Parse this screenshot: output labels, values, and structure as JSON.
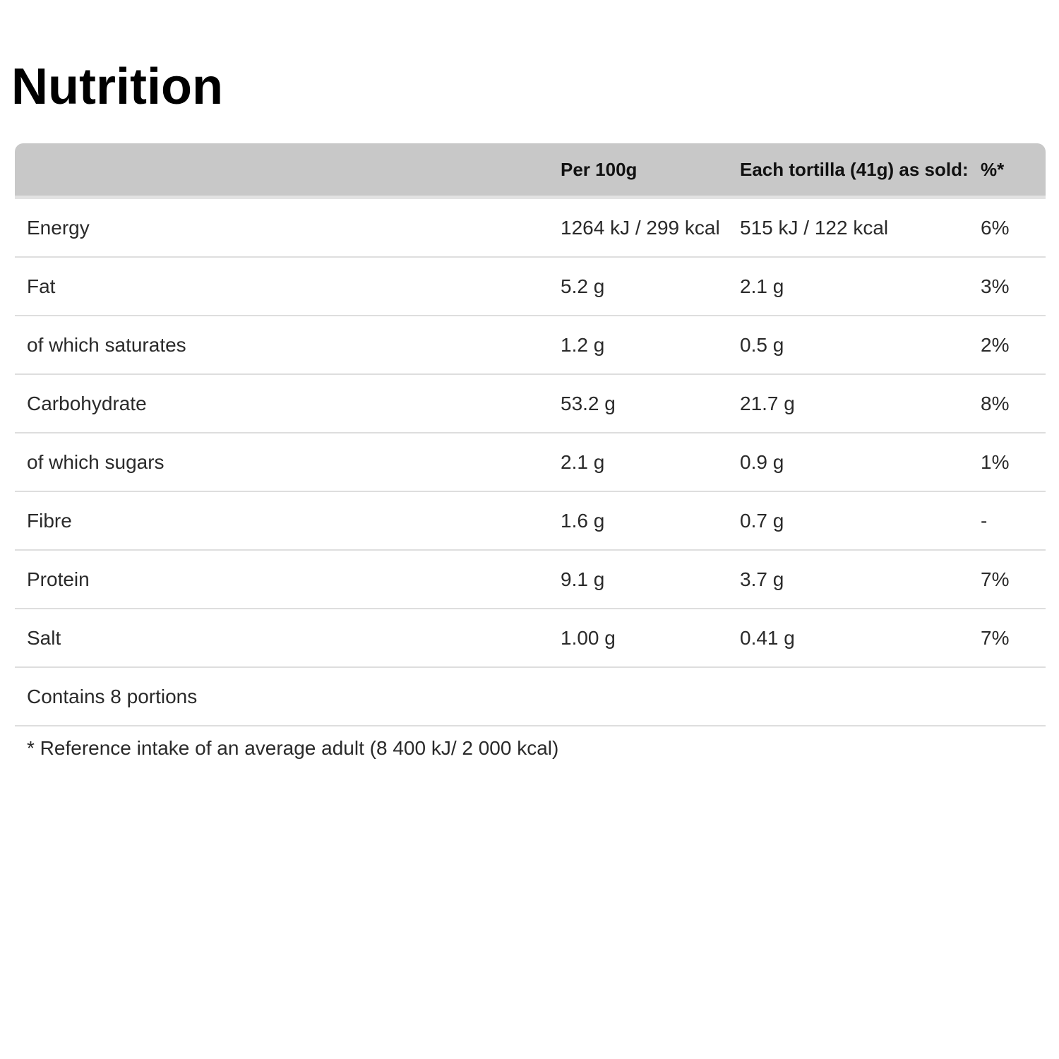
{
  "title": "Nutrition",
  "table": {
    "headers": {
      "name": "",
      "per100g": "Per 100g",
      "each": "Each tortilla (41g) as sold:",
      "pct": "%*"
    },
    "rows": [
      {
        "name": "Energy",
        "per100g": "1264 kJ / 299 kcal",
        "each": "515 kJ / 122 kcal",
        "pct": "6%"
      },
      {
        "name": "Fat",
        "per100g": "5.2 g",
        "each": "2.1 g",
        "pct": "3%"
      },
      {
        "name": "of which saturates",
        "per100g": "1.2 g",
        "each": "0.5 g",
        "pct": "2%"
      },
      {
        "name": "Carbohydrate",
        "per100g": "53.2 g",
        "each": "21.7 g",
        "pct": "8%"
      },
      {
        "name": "of which sugars",
        "per100g": "2.1 g",
        "each": "0.9 g",
        "pct": "1%"
      },
      {
        "name": "Fibre",
        "per100g": "1.6 g",
        "each": "0.7 g",
        "pct": "-"
      },
      {
        "name": "Protein",
        "per100g": "9.1 g",
        "each": "3.7 g",
        "pct": "7%"
      },
      {
        "name": "Salt",
        "per100g": "1.00 g",
        "each": "0.41 g",
        "pct": "7%"
      }
    ],
    "portions": "Contains 8 portions"
  },
  "footnote": "* Reference intake of an average adult (8 400 kJ/ 2 000 kcal)"
}
